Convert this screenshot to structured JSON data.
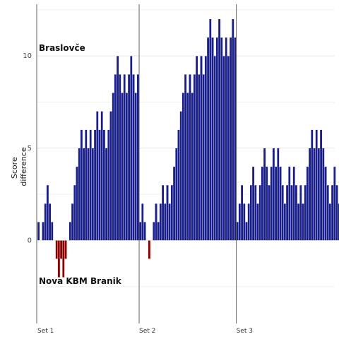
{
  "chart_data": {
    "type": "bar",
    "title": "",
    "xlabel": "",
    "ylabel": "Score difference",
    "ylim": [
      -4.5,
      12.8
    ],
    "y_ticks": [
      0,
      5,
      10
    ],
    "grid": true,
    "team_top": "Braslovče",
    "team_bottom": "Nova KBM Branik",
    "x_ticks": [
      "Set 1",
      "Set 2",
      "Set 3"
    ],
    "x_tick_positions": [
      0,
      45,
      88
    ],
    "set_dividers": [
      45,
      88
    ],
    "colors": {
      "positive": "#1a1f8c",
      "negative": "#8b0000",
      "divider": "#666666"
    },
    "sets": [
      {
        "name": "Set 1",
        "values": [
          1,
          0,
          1,
          2,
          3,
          2,
          1,
          0,
          -1,
          -2,
          -1,
          -2,
          -1,
          0,
          1,
          2,
          3,
          4,
          5,
          6,
          5,
          6,
          5,
          6,
          5,
          6,
          7,
          6,
          7,
          6,
          5,
          6,
          7,
          8,
          9,
          10,
          9,
          8,
          9,
          8,
          9,
          10,
          9,
          8,
          9
        ]
      },
      {
        "name": "Set 2",
        "values": [
          1,
          2,
          1,
          0,
          -1,
          0,
          1,
          2,
          1,
          2,
          3,
          2,
          3,
          2,
          3,
          4,
          5,
          6,
          7,
          8,
          9,
          8,
          9,
          8,
          9,
          10,
          9,
          10,
          9,
          10,
          11,
          12,
          11,
          10,
          11,
          12,
          11,
          10,
          11,
          10,
          11,
          12,
          11
        ]
      },
      {
        "name": "Set 3",
        "values": [
          1,
          2,
          3,
          2,
          1,
          2,
          3,
          4,
          3,
          2,
          3,
          4,
          5,
          4,
          3,
          4,
          5,
          4,
          5,
          4,
          3,
          2,
          3,
          4,
          3,
          4,
          3,
          2,
          3,
          2,
          3,
          4,
          5,
          6,
          5,
          6,
          5,
          6,
          5,
          4,
          3,
          2,
          3,
          4,
          3,
          2,
          3
        ]
      }
    ]
  }
}
